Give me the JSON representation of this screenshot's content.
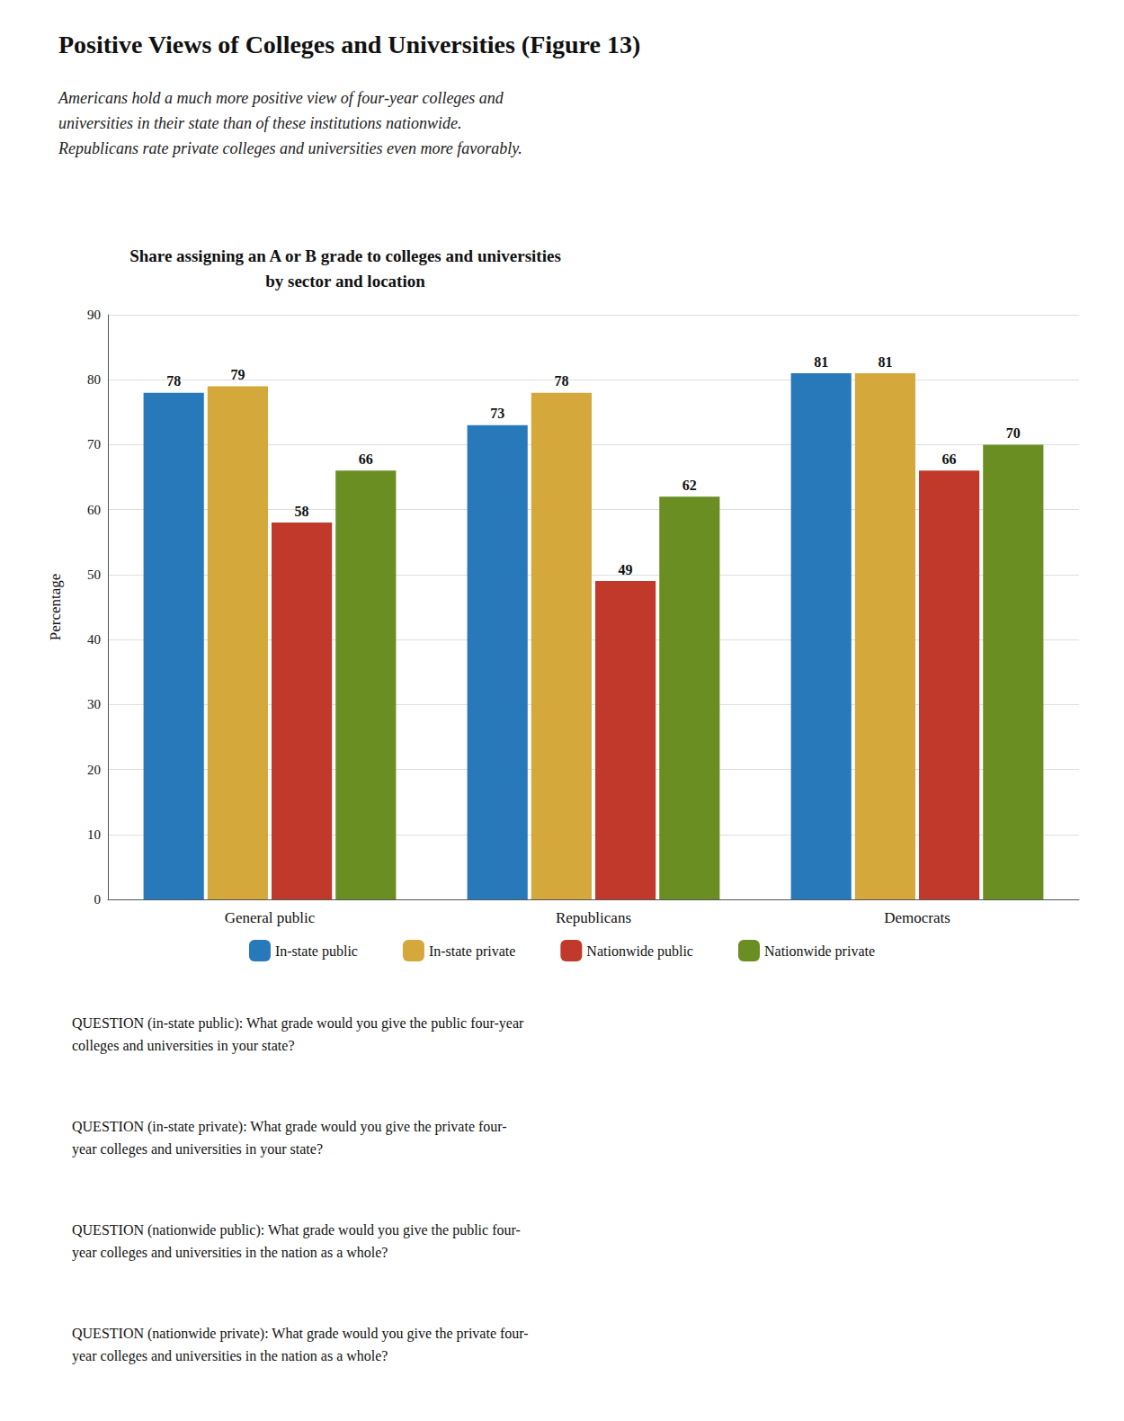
{
  "chart_data": {
    "type": "bar",
    "title": "Positive Views of Colleges and Universities (Figure 13)",
    "subtitle": "Americans hold a much more positive view of four-year colleges and\nuniversities in their state than of these institutions nationwide.\nRepublicans rate private colleges and universities even more favorably.",
    "chart_title": "Share assigning an A or B grade to colleges and universities\nby sector and location",
    "ylabel": "Percentage",
    "categories": [
      "General public",
      "Republicans",
      "Democrats"
    ],
    "series": [
      {
        "name": "In-state public",
        "color": "#2779BA",
        "values": [
          78,
          73,
          81
        ]
      },
      {
        "name": "In-state private",
        "color": "#D4A83A",
        "values": [
          79,
          78,
          81
        ]
      },
      {
        "name": "Nationwide public",
        "color": "#C0392B",
        "values": [
          58,
          49,
          66
        ]
      },
      {
        "name": "Nationwide private",
        "color": "#6B8E23",
        "values": [
          66,
          62,
          70
        ]
      }
    ],
    "ylim": [
      0,
      90
    ],
    "yticks": [
      0,
      10,
      20,
      30,
      40,
      50,
      60,
      70,
      80,
      90
    ],
    "grid": true,
    "legend": "bottom",
    "data_labels": true,
    "annotations": [
      "QUESTION (in-state public): What grade would you give the public four-year\ncolleges and universities in your state?",
      "QUESTION (in-state private): What grade would you give the private four-\nyear colleges and universities in your state?",
      "QUESTION (nationwide public): What grade would you give the public four-\nyear colleges and universities in the nation as a whole?",
      "QUESTION (nationwide private): What grade would you give the private four-\nyear colleges and universities in the nation as a whole?"
    ]
  }
}
